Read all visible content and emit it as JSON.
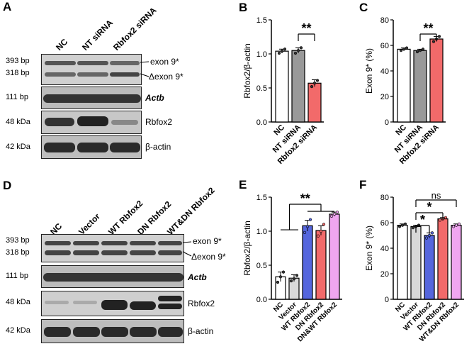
{
  "panels": {
    "A": {
      "letter": "A",
      "lanes": [
        "NC",
        "NT siRNA",
        "Rbfox2 siRNA"
      ],
      "rows": [
        {
          "left": "393 bp",
          "left2": "318 bp",
          "right": "exon 9*",
          "right2": "Δexon 9*"
        },
        {
          "left": "111 bp",
          "right": "Actb"
        },
        {
          "left": "48 kDa",
          "right": "Rbfox2"
        },
        {
          "left": "42 kDa",
          "right": "β-actin"
        }
      ]
    },
    "D": {
      "letter": "D",
      "lanes": [
        "NC",
        "Vector",
        "WT Rbfox2",
        "DN Rbfox2",
        "WT&DN Rbfox2"
      ],
      "rows": [
        {
          "left": "393 bp",
          "left2": "318 bp",
          "right": "exon 9*",
          "right2": "Δexon 9*"
        },
        {
          "left": "111 bp",
          "right": "Actb"
        },
        {
          "left": "48 kDa",
          "right": "Rbfox2"
        },
        {
          "left": "42 kDa",
          "right": "β-actin"
        }
      ]
    }
  },
  "chart_data": [
    {
      "letter": "B",
      "type": "bar",
      "categories": [
        "NC",
        "NT siRNA",
        "Rbfox2 siRNA"
      ],
      "values": [
        1.04,
        1.05,
        0.57
      ],
      "errors": [
        0.03,
        0.04,
        0.05
      ],
      "points": [
        [
          1.01,
          1.04,
          1.07
        ],
        [
          1.01,
          1.05,
          1.09
        ],
        [
          0.52,
          0.57,
          0.61
        ]
      ],
      "colors": [
        "#ffffff",
        "#999999",
        "#f26a6a"
      ],
      "ylabel": "Rbfox2/β-actin",
      "ylim": [
        0,
        1.5
      ],
      "yticks": [
        "0.0",
        "0.5",
        "1.0",
        "1.5"
      ],
      "annotations": [
        {
          "text": "**",
          "from": 1,
          "to": 2
        }
      ]
    },
    {
      "letter": "C",
      "type": "bar",
      "categories": [
        "NC",
        "NT siRNA",
        "Rbfox2 siRNA"
      ],
      "values": [
        57,
        56,
        65
      ],
      "errors": [
        1,
        1,
        2
      ],
      "points": [
        [
          56,
          57,
          58
        ],
        [
          55,
          56,
          57
        ],
        [
          63,
          65,
          67
        ]
      ],
      "colors": [
        "#ffffff",
        "#999999",
        "#f26a6a"
      ],
      "ylabel": "Exon 9* (%)",
      "ylim": [
        0,
        80
      ],
      "yticks": [
        "0",
        "20",
        "40",
        "60",
        "80"
      ],
      "annotations": [
        {
          "text": "**",
          "from": 1,
          "to": 2
        }
      ]
    },
    {
      "letter": "E",
      "type": "bar",
      "categories": [
        "NC",
        "Vector",
        "WT Rbfox2",
        "DN Rbfox2",
        "DN&WT Rbfox2"
      ],
      "values": [
        0.33,
        0.31,
        1.08,
        1.01,
        1.25
      ],
      "errors": [
        0.07,
        0.05,
        0.08,
        0.07,
        0.03
      ],
      "points": [
        [
          0.25,
          0.33,
          0.4
        ],
        [
          0.27,
          0.3,
          0.35
        ],
        [
          0.98,
          1.07,
          1.17
        ],
        [
          0.93,
          1.0,
          1.1
        ],
        [
          1.22,
          1.25,
          1.28
        ]
      ],
      "colors": [
        "#ffffff",
        "#d9d9d9",
        "#5566dd",
        "#f26a6a",
        "#f0a6f0"
      ],
      "ylabel": "Rbfox2/β-actin",
      "ylim": [
        0,
        1.5
      ],
      "yticks": [
        "0.0",
        "0.5",
        "1.0",
        "1.5"
      ],
      "annotations": [
        {
          "text": "**",
          "type": "group"
        }
      ]
    },
    {
      "letter": "F",
      "type": "bar",
      "categories": [
        "NC",
        "Vector",
        "WT Rbfox2",
        "DN Rbfox2",
        "WT&DN Rbfox2"
      ],
      "values": [
        58,
        57,
        50,
        63,
        58
      ],
      "errors": [
        1,
        1,
        2,
        1,
        1
      ],
      "points": [
        [
          57,
          58,
          59
        ],
        [
          56,
          57,
          58
        ],
        [
          48,
          50,
          52
        ],
        [
          62,
          63,
          64
        ],
        [
          57,
          58,
          59
        ]
      ],
      "colors": [
        "#ffffff",
        "#d9d9d9",
        "#5566dd",
        "#f26a6a",
        "#f0a6f0"
      ],
      "ylabel": "Exon 9* (%)",
      "ylim": [
        0,
        80
      ],
      "yticks": [
        "0",
        "20",
        "40",
        "60",
        "80"
      ],
      "annotations": [
        {
          "text": "*",
          "from": 1,
          "to": 2
        },
        {
          "text": "*",
          "from": 1,
          "to": 3
        },
        {
          "text": "ns",
          "from": 1,
          "to": 4
        }
      ]
    }
  ]
}
